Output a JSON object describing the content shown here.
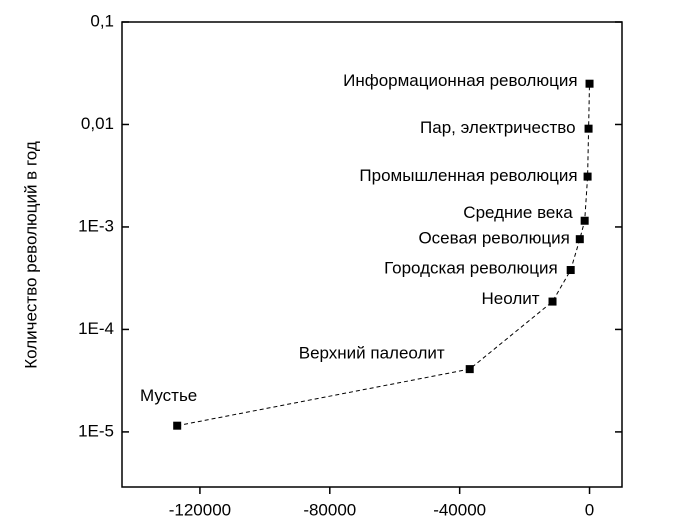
{
  "chart_data": {
    "type": "scatter",
    "y_label": "Количество революций в год",
    "labels": [
      "Мустье",
      "Верхний палеолит",
      "Неолит",
      "Городская революция",
      "Осевая революция",
      "Средние века",
      "Промышленная революция",
      "Пар, электричество",
      "Информационная революция"
    ],
    "x": [
      -127000,
      -36900,
      -11400,
      -5800,
      -3000,
      -1500,
      -600,
      -300,
      0
    ],
    "values": [
      1.15e-05,
      4.1e-05,
      0.000187,
      0.00038,
      0.00076,
      0.00115,
      0.0031,
      0.0091,
      0.025
    ],
    "color": "#000000",
    "log_y": true,
    "xlim": [
      -144000,
      10000
    ],
    "xticks": [
      -120000,
      -80000,
      -40000,
      0
    ],
    "ylim": [
      2.9e-06,
      0.1
    ],
    "yticks": [
      {
        "value": 0.1,
        "label": "0,1"
      },
      {
        "value": 0.01,
        "label": "0,01"
      },
      {
        "value": 0.001,
        "label": "1E-3"
      },
      {
        "value": 0.0001,
        "label": "1E-4"
      },
      {
        "value": 1e-05,
        "label": "1E-5"
      }
    ]
  }
}
